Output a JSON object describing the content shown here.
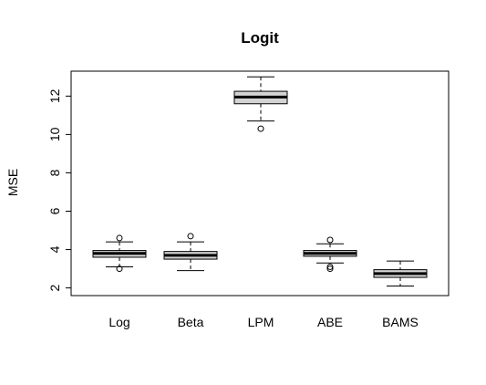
{
  "chart_data": {
    "type": "boxplot",
    "title": "Logit",
    "xlabel": "",
    "ylabel": "MSE",
    "ylim": [
      1.6,
      13.3
    ],
    "yticks": [
      2,
      4,
      6,
      8,
      10,
      12
    ],
    "grid": false,
    "box_fill": "#d3d3d3",
    "categories": [
      "Log",
      "Beta",
      "LPM",
      "ABE",
      "BAMS"
    ],
    "boxes": [
      {
        "name": "Log",
        "whisker_low": 3.1,
        "q1": 3.6,
        "median": 3.8,
        "q3": 3.95,
        "whisker_high": 4.4,
        "outliers": [
          3.0,
          4.6
        ]
      },
      {
        "name": "Beta",
        "whisker_low": 2.9,
        "q1": 3.5,
        "median": 3.7,
        "q3": 3.9,
        "whisker_high": 4.4,
        "outliers": [
          4.7
        ]
      },
      {
        "name": "LPM",
        "whisker_low": 10.7,
        "q1": 11.6,
        "median": 11.95,
        "q3": 12.25,
        "whisker_high": 13.0,
        "outliers": [
          10.3
        ]
      },
      {
        "name": "ABE",
        "whisker_low": 3.3,
        "q1": 3.65,
        "median": 3.8,
        "q3": 3.95,
        "whisker_high": 4.3,
        "outliers": [
          3.0,
          3.1,
          4.5
        ]
      },
      {
        "name": "BAMS",
        "whisker_low": 2.1,
        "q1": 2.55,
        "median": 2.75,
        "q3": 2.95,
        "whisker_high": 3.4,
        "outliers": []
      }
    ]
  }
}
